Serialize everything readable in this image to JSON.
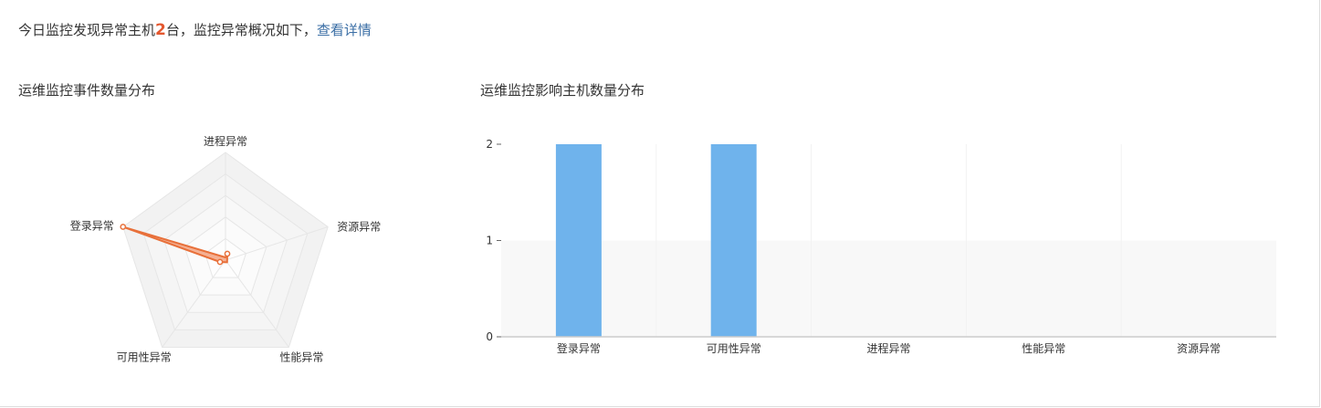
{
  "summary": {
    "prefix": "今日监控发现异常主机",
    "count": "2",
    "suffix": "台，监控异常概况如下，",
    "link_label": "查看详情"
  },
  "left_title": "运维监控事件数量分布",
  "right_title": "运维监控影响主机数量分布",
  "colors": {
    "radar_line": "#e8703a",
    "radar_fill": "#f4a582",
    "bar": "#6fb3ec",
    "link": "#3a6ea5",
    "highlight": "#e4572e"
  },
  "chart_data": [
    {
      "type": "radar",
      "title": "运维监控事件数量分布",
      "indicators": [
        "进程异常",
        "资源异常",
        "性能异常",
        "可用性异常",
        "登录异常"
      ],
      "values": [
        0,
        0,
        0,
        0,
        7
      ],
      "max": 7
    },
    {
      "type": "bar",
      "title": "运维监控影响主机数量分布",
      "categories": [
        "登录异常",
        "可用性异常",
        "进程异常",
        "性能异常",
        "资源异常"
      ],
      "values": [
        2,
        2,
        0,
        0,
        0
      ],
      "ylim": [
        0,
        2
      ],
      "yticks": [
        "0",
        "1",
        "2"
      ]
    }
  ]
}
